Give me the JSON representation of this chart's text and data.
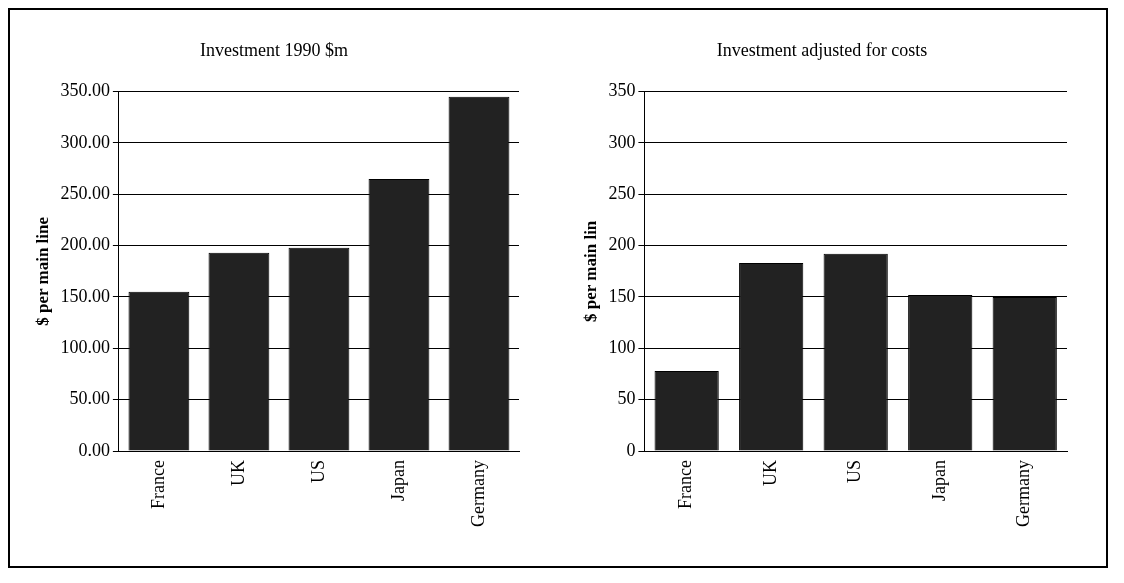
{
  "chart_data": [
    {
      "type": "bar",
      "title": "Investment 1990 $m",
      "ylabel": "$ per main line",
      "categories": [
        "France",
        "UK",
        "US",
        "Japan",
        "Germany"
      ],
      "values": [
        155,
        193,
        198,
        265,
        345
      ],
      "color": "#222222",
      "ylim": [
        0,
        350
      ],
      "yticks": [
        {
          "value": 0,
          "label": "0.00"
        },
        {
          "value": 50,
          "label": "50.00"
        },
        {
          "value": 100,
          "label": "100.00"
        },
        {
          "value": 150,
          "label": "150.00"
        },
        {
          "value": 200,
          "label": "200.00"
        },
        {
          "value": 250,
          "label": "250.00"
        },
        {
          "value": 300,
          "label": "300.00"
        },
        {
          "value": 350,
          "label": "350.00"
        }
      ],
      "grid": "y",
      "legend": false
    },
    {
      "type": "bar",
      "title": "Investment adjusted for costs",
      "ylabel": "$ per main lin",
      "categories": [
        "France",
        "UK",
        "US",
        "Japan",
        "Germany"
      ],
      "values": [
        78,
        183,
        192,
        152,
        150
      ],
      "color": "#222222",
      "ylim": [
        0,
        350
      ],
      "yticks": [
        0,
        50,
        100,
        150,
        200,
        250,
        300,
        350
      ],
      "grid": "y",
      "legend": false
    }
  ]
}
